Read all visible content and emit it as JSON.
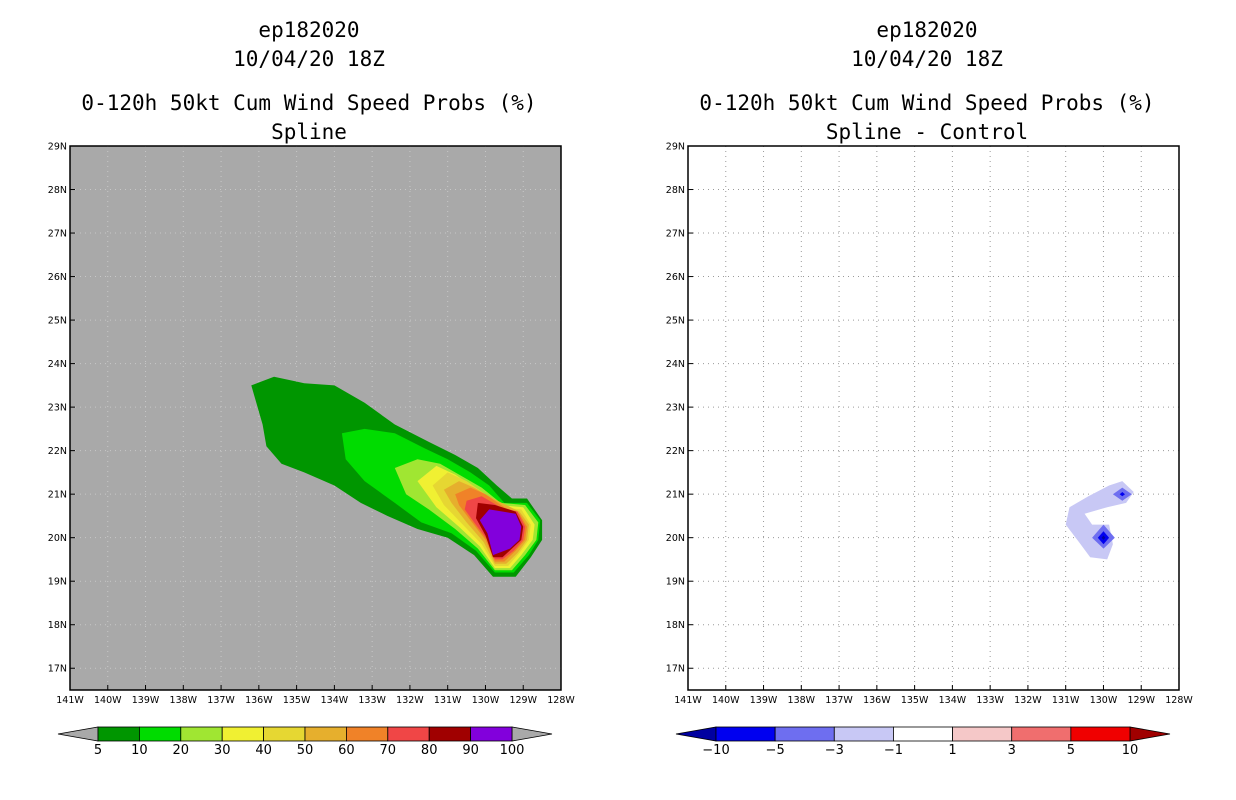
{
  "chart_data": [
    {
      "type": "filled-contour-map",
      "title_lines": [
        "ep182020",
        "10/04/20 18Z",
        "0-120h 50kt Cum Wind Speed Probs (%)",
        "Spline"
      ],
      "x_ticks": [
        "141W",
        "140W",
        "139W",
        "138W",
        "137W",
        "136W",
        "135W",
        "134W",
        "133W",
        "132W",
        "131W",
        "130W",
        "129W",
        "128W"
      ],
      "y_ticks": [
        "29N",
        "28N",
        "27N",
        "26N",
        "25N",
        "24N",
        "23N",
        "22N",
        "21N",
        "20N",
        "19N",
        "18N",
        "17N"
      ],
      "lon_range": [
        -141,
        -128
      ],
      "lat_range": [
        16.5,
        29
      ],
      "background_color": "#a9a9a9",
      "colorbar": {
        "labels": [
          "5",
          "10",
          "20",
          "30",
          "40",
          "50",
          "60",
          "70",
          "80",
          "90",
          "100"
        ],
        "colors": [
          "#009600",
          "#00dc00",
          "#a0e632",
          "#f0f032",
          "#e6d732",
          "#e6af2d",
          "#f08228",
          "#f04646",
          "#a00000",
          "#8200dc"
        ]
      },
      "contours": [
        {
          "level": 5,
          "color": "#009600",
          "polygon": [
            [
              -136.2,
              23.5
            ],
            [
              -135.6,
              23.7
            ],
            [
              -134.8,
              23.55
            ],
            [
              -134.0,
              23.5
            ],
            [
              -133.2,
              23.1
            ],
            [
              -132.4,
              22.6
            ],
            [
              -131.5,
              22.2
            ],
            [
              -130.8,
              21.9
            ],
            [
              -130.2,
              21.6
            ],
            [
              -129.7,
              21.2
            ],
            [
              -129.3,
              20.9
            ],
            [
              -128.9,
              20.9
            ],
            [
              -128.5,
              20.4
            ],
            [
              -128.5,
              19.95
            ],
            [
              -128.8,
              19.55
            ],
            [
              -129.2,
              19.1
            ],
            [
              -129.8,
              19.1
            ],
            [
              -130.3,
              19.6
            ],
            [
              -131.0,
              20.0
            ],
            [
              -131.8,
              20.2
            ],
            [
              -132.6,
              20.5
            ],
            [
              -133.3,
              20.8
            ],
            [
              -134.0,
              21.2
            ],
            [
              -134.8,
              21.5
            ],
            [
              -135.4,
              21.7
            ],
            [
              -135.8,
              22.1
            ],
            [
              -135.9,
              22.6
            ]
          ]
        },
        {
          "level": 10,
          "color": "#00dc00",
          "polygon": [
            [
              -133.8,
              22.4
            ],
            [
              -133.2,
              22.5
            ],
            [
              -132.4,
              22.4
            ],
            [
              -131.6,
              22.05
            ],
            [
              -131.0,
              21.8
            ],
            [
              -130.4,
              21.5
            ],
            [
              -129.9,
              21.2
            ],
            [
              -129.5,
              20.8
            ],
            [
              -128.9,
              20.8
            ],
            [
              -128.55,
              20.4
            ],
            [
              -128.6,
              19.95
            ],
            [
              -128.85,
              19.6
            ],
            [
              -129.25,
              19.2
            ],
            [
              -129.75,
              19.2
            ],
            [
              -130.25,
              19.7
            ],
            [
              -130.9,
              20.1
            ],
            [
              -131.7,
              20.35
            ],
            [
              -132.4,
              20.8
            ],
            [
              -133.2,
              21.3
            ],
            [
              -133.7,
              21.8
            ]
          ]
        },
        {
          "level": 20,
          "color": "#a0e632",
          "polygon": [
            [
              -132.4,
              21.6
            ],
            [
              -131.8,
              21.8
            ],
            [
              -131.2,
              21.7
            ],
            [
              -130.6,
              21.4
            ],
            [
              -130.1,
              21.15
            ],
            [
              -129.6,
              20.8
            ],
            [
              -128.95,
              20.75
            ],
            [
              -128.6,
              20.35
            ],
            [
              -128.65,
              19.95
            ],
            [
              -128.95,
              19.6
            ],
            [
              -129.3,
              19.25
            ],
            [
              -129.75,
              19.25
            ],
            [
              -130.2,
              19.75
            ],
            [
              -130.8,
              20.2
            ],
            [
              -131.5,
              20.65
            ],
            [
              -132.1,
              21.0
            ]
          ]
        },
        {
          "level": 30,
          "color": "#f0f032",
          "polygon": [
            [
              -131.8,
              21.3
            ],
            [
              -131.3,
              21.65
            ],
            [
              -130.8,
              21.45
            ],
            [
              -130.2,
              21.1
            ],
            [
              -129.7,
              20.75
            ],
            [
              -129.0,
              20.7
            ],
            [
              -128.7,
              20.3
            ],
            [
              -128.75,
              19.95
            ],
            [
              -129.05,
              19.6
            ],
            [
              -129.35,
              19.3
            ],
            [
              -129.75,
              19.3
            ],
            [
              -130.15,
              19.8
            ],
            [
              -130.7,
              20.25
            ],
            [
              -131.3,
              20.7
            ]
          ]
        },
        {
          "level": 40,
          "color": "#e6d732",
          "polygon": [
            [
              -131.4,
              21.2
            ],
            [
              -131.0,
              21.5
            ],
            [
              -130.5,
              21.3
            ],
            [
              -130.0,
              21.0
            ],
            [
              -129.6,
              20.7
            ],
            [
              -129.05,
              20.65
            ],
            [
              -128.8,
              20.3
            ],
            [
              -128.85,
              19.95
            ],
            [
              -129.1,
              19.65
            ],
            [
              -129.4,
              19.35
            ],
            [
              -129.75,
              19.35
            ],
            [
              -130.1,
              19.85
            ],
            [
              -130.6,
              20.3
            ],
            [
              -131.1,
              20.75
            ]
          ]
        },
        {
          "level": 50,
          "color": "#e6af2d",
          "polygon": [
            [
              -131.1,
              21.1
            ],
            [
              -130.7,
              21.3
            ],
            [
              -130.3,
              21.15
            ],
            [
              -129.8,
              20.9
            ],
            [
              -129.1,
              20.6
            ],
            [
              -128.85,
              20.3
            ],
            [
              -128.9,
              19.95
            ],
            [
              -129.15,
              19.65
            ],
            [
              -129.45,
              19.4
            ],
            [
              -129.75,
              19.4
            ],
            [
              -130.05,
              19.9
            ],
            [
              -130.5,
              20.35
            ],
            [
              -130.9,
              20.8
            ]
          ]
        },
        {
          "level": 60,
          "color": "#f08228",
          "polygon": [
            [
              -130.8,
              21.0
            ],
            [
              -130.4,
              21.15
            ],
            [
              -130.0,
              21.0
            ],
            [
              -129.5,
              20.7
            ],
            [
              -129.1,
              20.55
            ],
            [
              -128.9,
              20.25
            ],
            [
              -128.95,
              19.95
            ],
            [
              -129.2,
              19.7
            ],
            [
              -129.5,
              19.45
            ],
            [
              -129.75,
              19.45
            ],
            [
              -130.0,
              19.95
            ],
            [
              -130.4,
              20.4
            ],
            [
              -130.7,
              20.75
            ]
          ]
        },
        {
          "level": 70,
          "color": "#f04646",
          "polygon": [
            [
              -130.5,
              20.85
            ],
            [
              -130.1,
              20.95
            ],
            [
              -129.6,
              20.7
            ],
            [
              -129.15,
              20.6
            ],
            [
              -128.95,
              20.25
            ],
            [
              -129.0,
              19.95
            ],
            [
              -129.25,
              19.7
            ],
            [
              -129.55,
              19.5
            ],
            [
              -129.75,
              19.5
            ],
            [
              -129.95,
              19.95
            ],
            [
              -130.3,
              20.35
            ],
            [
              -130.55,
              20.65
            ]
          ]
        },
        {
          "level": 80,
          "color": "#a00000",
          "polygon": [
            [
              -130.2,
              20.8
            ],
            [
              -129.75,
              20.75
            ],
            [
              -129.2,
              20.6
            ],
            [
              -129.0,
              20.25
            ],
            [
              -129.05,
              19.95
            ],
            [
              -129.3,
              19.75
            ],
            [
              -129.55,
              19.55
            ],
            [
              -129.8,
              19.55
            ],
            [
              -130.0,
              20.05
            ],
            [
              -130.25,
              20.45
            ]
          ]
        },
        {
          "level": 90,
          "color": "#8200dc",
          "polygon": [
            [
              -129.9,
              20.65
            ],
            [
              -129.2,
              20.55
            ],
            [
              -129.05,
              20.25
            ],
            [
              -129.1,
              19.95
            ],
            [
              -129.35,
              19.75
            ],
            [
              -129.8,
              19.6
            ],
            [
              -129.95,
              20.1
            ],
            [
              -130.15,
              20.4
            ]
          ]
        }
      ]
    },
    {
      "type": "filled-contour-map",
      "title_lines": [
        "ep182020",
        "10/04/20 18Z",
        "0-120h 50kt Cum Wind Speed Probs (%)",
        "Spline - Control"
      ],
      "x_ticks": [
        "141W",
        "140W",
        "139W",
        "138W",
        "137W",
        "136W",
        "135W",
        "134W",
        "133W",
        "132W",
        "131W",
        "130W",
        "129W",
        "128W"
      ],
      "y_ticks": [
        "29N",
        "28N",
        "27N",
        "26N",
        "25N",
        "24N",
        "23N",
        "22N",
        "21N",
        "20N",
        "19N",
        "18N",
        "17N"
      ],
      "lon_range": [
        -141,
        -128
      ],
      "lat_range": [
        16.5,
        29
      ],
      "background_color": "#ffffff",
      "grid": "dotted",
      "colorbar": {
        "labels": [
          "-10",
          "-5",
          "-3",
          "-1",
          "1",
          "3",
          "5",
          "10"
        ],
        "colors": [
          "#0000a0",
          "#0000f0",
          "#6e6ef0",
          "#c8c8f5",
          "#ffffff",
          "#f5c8c8",
          "#f06e6e",
          "#f00000",
          "#a00000"
        ]
      },
      "contours": [
        {
          "level": -1,
          "color": "#c8c8f5",
          "polygon": [
            [
              -130.9,
              20.7
            ],
            [
              -130.4,
              20.95
            ],
            [
              -129.85,
              21.2
            ],
            [
              -129.5,
              21.3
            ],
            [
              -129.2,
              21.05
            ],
            [
              -129.4,
              20.8
            ],
            [
              -129.9,
              20.7
            ],
            [
              -130.5,
              20.55
            ],
            [
              -130.3,
              20.3
            ],
            [
              -129.85,
              20.3
            ],
            [
              -129.75,
              19.85
            ],
            [
              -129.9,
              19.5
            ],
            [
              -130.35,
              19.55
            ],
            [
              -130.65,
              19.9
            ],
            [
              -131.0,
              20.3
            ]
          ]
        },
        {
          "level": -3,
          "color": "#6e6ef0",
          "polygon": [
            [
              -129.5,
              21.15
            ],
            [
              -129.25,
              21.0
            ],
            [
              -129.5,
              20.85
            ],
            [
              -129.75,
              21.0
            ]
          ]
        },
        {
          "level": -3,
          "color": "#6e6ef0",
          "polygon": [
            [
              -130.0,
              20.3
            ],
            [
              -129.7,
              20.0
            ],
            [
              -130.0,
              19.75
            ],
            [
              -130.3,
              20.0
            ]
          ]
        },
        {
          "level": -5,
          "color": "#0000f0",
          "polygon": [
            [
              -130.0,
              20.15
            ],
            [
              -129.85,
              20.0
            ],
            [
              -130.0,
              19.85
            ],
            [
              -130.15,
              20.0
            ]
          ]
        },
        {
          "level": -10,
          "color": "#0000a0",
          "polygon": [
            [
              -130.0,
              20.05
            ],
            [
              -129.95,
              20.0
            ],
            [
              -130.0,
              19.95
            ],
            [
              -130.05,
              20.0
            ]
          ]
        },
        {
          "level": -5,
          "color": "#0000f0",
          "polygon": [
            [
              -129.5,
              21.05
            ],
            [
              -129.43,
              21.0
            ],
            [
              -129.5,
              20.95
            ],
            [
              -129.57,
              21.0
            ]
          ]
        }
      ]
    }
  ]
}
